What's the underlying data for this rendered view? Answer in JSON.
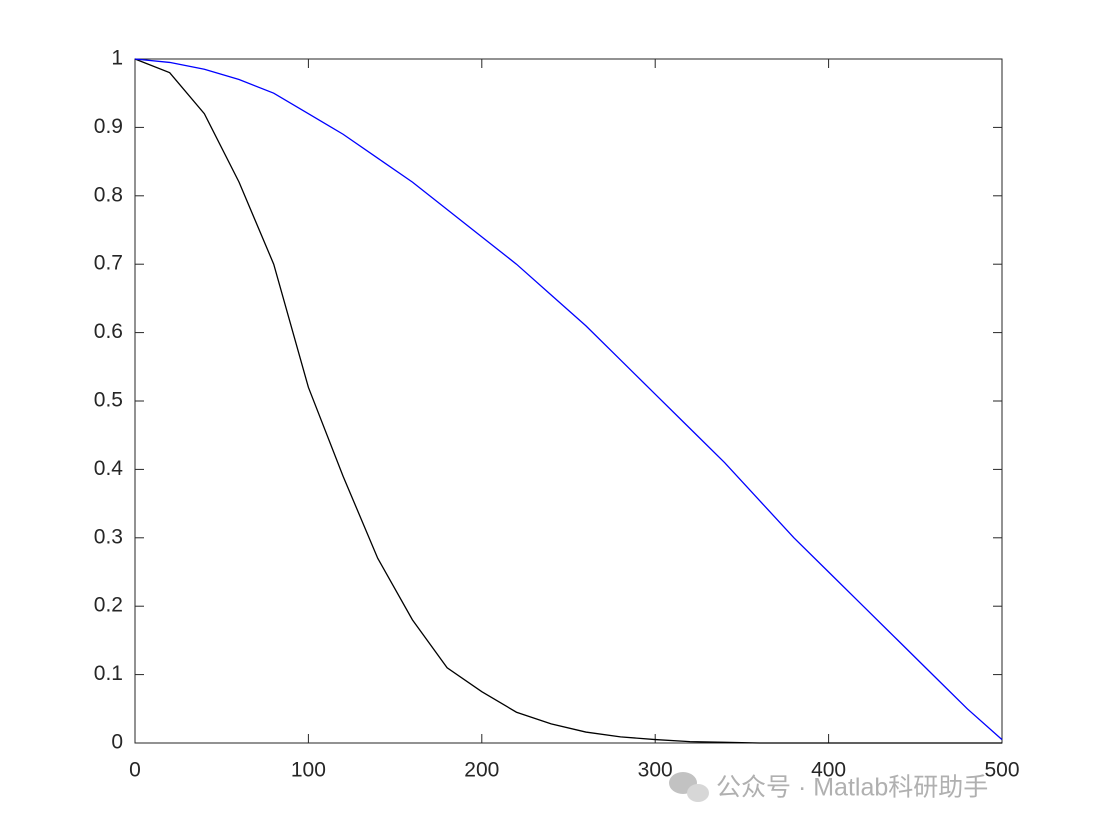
{
  "chart_data": {
    "type": "line",
    "x": [
      0,
      20,
      40,
      60,
      80,
      100,
      120,
      140,
      160,
      180,
      200,
      220,
      240,
      260,
      280,
      300,
      320,
      340,
      360,
      380,
      400,
      420,
      440,
      460,
      480,
      500
    ],
    "series": [
      {
        "color": "#000000",
        "values": [
          1,
          0.98,
          0.92,
          0.82,
          0.7,
          0.52,
          0.39,
          0.27,
          0.18,
          0.11,
          0.075,
          0.045,
          0.028,
          0.016,
          0.009,
          0.005,
          0.002,
          0.001,
          0,
          0,
          0,
          0,
          0,
          0,
          0,
          0
        ]
      },
      {
        "color": "#0000ff",
        "values": [
          1,
          0.995,
          0.985,
          0.97,
          0.95,
          0.92,
          0.89,
          0.855,
          0.82,
          0.78,
          0.74,
          0.7,
          0.655,
          0.61,
          0.56,
          0.51,
          0.46,
          0.41,
          0.355,
          0.3,
          0.25,
          0.2,
          0.15,
          0.1,
          0.05,
          0.005
        ]
      }
    ],
    "xlim": [
      0,
      500
    ],
    "xticks": [
      0,
      100,
      200,
      300,
      400,
      500
    ],
    "ylim": [
      0,
      1
    ],
    "yticks": [
      0,
      0.1,
      0.2,
      0.3,
      0.4,
      0.5,
      0.6,
      0.7,
      0.8,
      0.9,
      1
    ],
    "grid": false,
    "watermark": "公众号 · Matlab科研助手"
  }
}
